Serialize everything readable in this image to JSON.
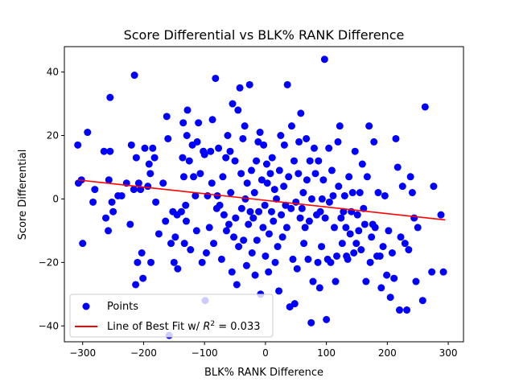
{
  "chart_data": {
    "type": "scatter",
    "title": "Score Differential vs BLK% RANK Difference",
    "xlabel": "BLK% RANK Difference",
    "ylabel": "Score Differential",
    "xlim": [
      -330,
      325
    ],
    "ylim": [
      -45,
      48
    ],
    "x_ticks": [
      -300,
      -200,
      -100,
      0,
      100,
      200,
      300
    ],
    "x_tick_labels": [
      "−300",
      "−200",
      "−100",
      "0",
      "100",
      "200",
      "300"
    ],
    "y_ticks": [
      -40,
      -20,
      0,
      20,
      40
    ],
    "y_tick_labels": [
      "−40",
      "−20",
      "0",
      "20",
      "40"
    ],
    "grid": false,
    "legend_position": "lower-left",
    "legend": [
      {
        "label": "Points",
        "kind": "marker",
        "color": "#0000ff"
      },
      {
        "label_prefix": "Line of Best Fit w/ ",
        "label_math": "R",
        "label_sup": "2",
        "label_suffix": " = 0.033",
        "kind": "line",
        "color": "#ff0000"
      }
    ],
    "series": [
      {
        "name": "Points",
        "color": "#0000ff",
        "points": [
          [
            -308,
            17
          ],
          [
            -307,
            5
          ],
          [
            -302,
            6
          ],
          [
            -300,
            -14
          ],
          [
            -292,
            21
          ],
          [
            -283,
            -1
          ],
          [
            -280,
            3
          ],
          [
            -265,
            15
          ],
          [
            -262,
            -6
          ],
          [
            -258,
            -10
          ],
          [
            -255,
            15
          ],
          [
            -257,
            6
          ],
          [
            -255,
            32
          ],
          [
            -252,
            -1
          ],
          [
            -250,
            -4
          ],
          [
            -242,
            1
          ],
          [
            -236,
            1
          ],
          [
            -228,
            5
          ],
          [
            -222,
            -8
          ],
          [
            -220,
            17
          ],
          [
            -216,
            3
          ],
          [
            -215,
            39
          ],
          [
            -213,
            -27
          ],
          [
            -212,
            13
          ],
          [
            -210,
            -20
          ],
          [
            -208,
            5
          ],
          [
            -205,
            3
          ],
          [
            -203,
            -17
          ],
          [
            -201,
            -25
          ],
          [
            -198,
            16
          ],
          [
            -193,
            4
          ],
          [
            -191,
            11
          ],
          [
            -189,
            8
          ],
          [
            -188,
            -20
          ],
          [
            -185,
            16
          ],
          [
            -182,
            13
          ],
          [
            -180,
            -1
          ],
          [
            -175,
            -11
          ],
          [
            -168,
            5
          ],
          [
            -164,
            -7
          ],
          [
            -162,
            26
          ],
          [
            -160,
            19
          ],
          [
            -158,
            -43
          ],
          [
            -155,
            -14
          ],
          [
            -152,
            -4
          ],
          [
            -150,
            -20
          ],
          [
            -148,
            -12
          ],
          [
            -145,
            -5
          ],
          [
            -144,
            -22
          ],
          [
            -138,
            -4
          ],
          [
            -136,
            13
          ],
          [
            -135,
            24
          ],
          [
            -134,
            7
          ],
          [
            -133,
            -14
          ],
          [
            -131,
            -2
          ],
          [
            -130,
            -7
          ],
          [
            -129,
            20
          ],
          [
            -128,
            28
          ],
          [
            -125,
            12
          ],
          [
            -123,
            -16
          ],
          [
            -120,
            17
          ],
          [
            -118,
            7
          ],
          [
            -115,
            1
          ],
          [
            -113,
            -10
          ],
          [
            -112,
            18
          ],
          [
            -110,
            24
          ],
          [
            -107,
            8
          ],
          [
            -104,
            -20
          ],
          [
            -102,
            15
          ],
          [
            -100,
            14
          ],
          [
            -99,
            -32
          ],
          [
            -97,
            -17
          ],
          [
            -95,
            1
          ],
          [
            -92,
            -9
          ],
          [
            -90,
            15
          ],
          [
            -88,
            5
          ],
          [
            -87,
            25
          ],
          [
            -85,
            -14
          ],
          [
            -82,
            38
          ],
          [
            -80,
            -3
          ],
          [
            -79,
            1
          ],
          [
            -77,
            16
          ],
          [
            -75,
            -2
          ],
          [
            -72,
            -19
          ],
          [
            -70,
            7
          ],
          [
            -68,
            -5
          ],
          [
            -65,
            13
          ],
          [
            -64,
            -10
          ],
          [
            -62,
            20
          ],
          [
            -60,
            -8
          ],
          [
            -58,
            15
          ],
          [
            -57,
            2
          ],
          [
            -55,
            -23
          ],
          [
            -54,
            30
          ],
          [
            -52,
            -12
          ],
          [
            -50,
            12
          ],
          [
            -49,
            -6
          ],
          [
            -47,
            -27
          ],
          [
            -45,
            28
          ],
          [
            -44,
            -15
          ],
          [
            -42,
            35
          ],
          [
            -40,
            8
          ],
          [
            -39,
            -3
          ],
          [
            -37,
            19
          ],
          [
            -36,
            -13
          ],
          [
            -34,
            23
          ],
          [
            -33,
            0
          ],
          [
            -31,
            -21
          ],
          [
            -30,
            5
          ],
          [
            -28,
            -8
          ],
          [
            -26,
            36
          ],
          [
            -25,
            -4
          ],
          [
            -23,
            9
          ],
          [
            -22,
            -17
          ],
          [
            -20,
            -6
          ],
          [
            -18,
            2
          ],
          [
            -17,
            -24
          ],
          [
            -15,
            12
          ],
          [
            -14,
            -13
          ],
          [
            -12,
            18
          ],
          [
            -11,
            -4
          ],
          [
            -9,
            21
          ],
          [
            -8,
            -30
          ],
          [
            -6,
            6
          ],
          [
            -4,
            -9
          ],
          [
            -3,
            17
          ],
          [
            -1,
            -2
          ],
          [
            0,
            -18
          ],
          [
            2,
            11
          ],
          [
            3,
            5
          ],
          [
            5,
            -23
          ],
          [
            6,
            -11
          ],
          [
            8,
            8
          ],
          [
            10,
            -4
          ],
          [
            11,
            13
          ],
          [
            13,
            -7
          ],
          [
            15,
            3
          ],
          [
            16,
            -20
          ],
          [
            18,
            0
          ],
          [
            20,
            -15
          ],
          [
            22,
            -29
          ],
          [
            23,
            9
          ],
          [
            25,
            20
          ],
          [
            26,
            -5
          ],
          [
            28,
            -12
          ],
          [
            30,
            4
          ],
          [
            31,
            17
          ],
          [
            33,
            -2
          ],
          [
            35,
            -9
          ],
          [
            36,
            36
          ],
          [
            38,
            7
          ],
          [
            40,
            -34
          ],
          [
            42,
            -3
          ],
          [
            43,
            23
          ],
          [
            45,
            -19
          ],
          [
            47,
            12
          ],
          [
            48,
            -33
          ],
          [
            50,
            -1
          ],
          [
            52,
            -22
          ],
          [
            54,
            8
          ],
          [
            55,
            18
          ],
          [
            57,
            -6
          ],
          [
            58,
            27
          ],
          [
            60,
            -3
          ],
          [
            62,
            2
          ],
          [
            63,
            -14
          ],
          [
            65,
            -9
          ],
          [
            67,
            19
          ],
          [
            68,
            6
          ],
          [
            70,
            -19
          ],
          [
            72,
            -7
          ],
          [
            73,
            12
          ],
          [
            75,
            -39
          ],
          [
            76,
            0
          ],
          [
            78,
            -26
          ],
          [
            80,
            16
          ],
          [
            82,
            8
          ],
          [
            84,
            -5
          ],
          [
            86,
            -20
          ],
          [
            87,
            12
          ],
          [
            89,
            -28
          ],
          [
            90,
            -4
          ],
          [
            92,
            -15
          ],
          [
            93,
            0
          ],
          [
            95,
            6
          ],
          [
            97,
            44
          ],
          [
            98,
            -6
          ],
          [
            100,
            -38
          ],
          [
            102,
            -19
          ],
          [
            104,
            16
          ],
          [
            105,
            -1
          ],
          [
            107,
            -20
          ],
          [
            109,
            9
          ],
          [
            111,
            1
          ],
          [
            113,
            -9
          ],
          [
            115,
            -26
          ],
          [
            117,
            -18
          ],
          [
            119,
            18
          ],
          [
            120,
            4
          ],
          [
            122,
            23
          ],
          [
            124,
            -6
          ],
          [
            126,
            -14
          ],
          [
            128,
            -4
          ],
          [
            130,
            1
          ],
          [
            132,
            -9
          ],
          [
            133,
            -18
          ],
          [
            135,
            -19
          ],
          [
            137,
            7
          ],
          [
            139,
            -11
          ],
          [
            141,
            -4
          ],
          [
            143,
            2
          ],
          [
            145,
            -17
          ],
          [
            147,
            15
          ],
          [
            149,
            -14
          ],
          [
            151,
            -5
          ],
          [
            153,
            -10
          ],
          [
            155,
            2
          ],
          [
            157,
            -16
          ],
          [
            159,
            11
          ],
          [
            161,
            -3
          ],
          [
            163,
            -8
          ],
          [
            165,
            -26
          ],
          [
            167,
            7
          ],
          [
            170,
            23
          ],
          [
            172,
            -20
          ],
          [
            174,
            -12
          ],
          [
            176,
            -8
          ],
          [
            178,
            18
          ],
          [
            180,
            -9
          ],
          [
            183,
            -18
          ],
          [
            185,
            2
          ],
          [
            188,
            -18
          ],
          [
            190,
            -28
          ],
          [
            193,
            -15
          ],
          [
            196,
            1
          ],
          [
            199,
            -24
          ],
          [
            202,
            -10
          ],
          [
            205,
            -31
          ],
          [
            208,
            -17
          ],
          [
            211,
            -25
          ],
          [
            214,
            19
          ],
          [
            217,
            10
          ],
          [
            220,
            -35
          ],
          [
            222,
            -12
          ],
          [
            225,
            4
          ],
          [
            229,
            -14
          ],
          [
            232,
            -35
          ],
          [
            235,
            -16
          ],
          [
            238,
            7
          ],
          [
            241,
            2
          ],
          [
            244,
            -6
          ],
          [
            247,
            -26
          ],
          [
            250,
            -9
          ],
          [
            258,
            -32
          ],
          [
            262,
            29
          ],
          [
            273,
            -23
          ],
          [
            276,
            4
          ],
          [
            288,
            -5
          ],
          [
            292,
            -23
          ]
        ]
      }
    ],
    "trendline": {
      "name": "Line of Best Fit",
      "color": "#ff0000",
      "x": [
        -308,
        295
      ],
      "y": [
        6.0,
        -6.6
      ]
    }
  }
}
